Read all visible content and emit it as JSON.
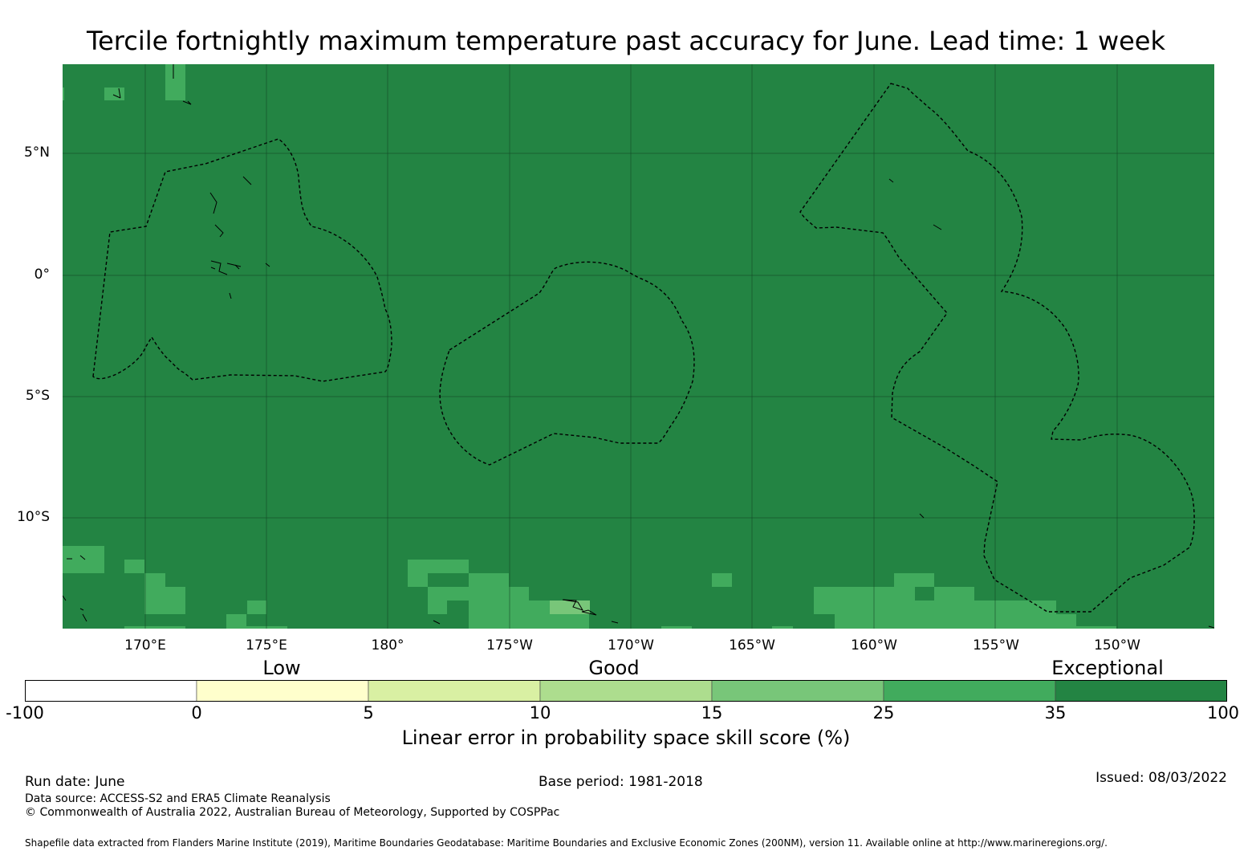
{
  "title": "Tercile fortnightly maximum temperature past accuracy for June. Lead time: 1 week",
  "lat_labels": [
    "5°N",
    "0°",
    "5°S",
    "10°S"
  ],
  "lon_labels": [
    "170°E",
    "175°E",
    "180°",
    "175°W",
    "170°W",
    "165°W",
    "160°W",
    "155°W",
    "150°W"
  ],
  "categories": [
    "Low",
    "Good",
    "Exceptional"
  ],
  "colorbar": {
    "ticks": [
      "-100",
      "0",
      "5",
      "10",
      "15",
      "25",
      "35",
      "100"
    ],
    "colors": [
      "#ffffff",
      "#ffffcc",
      "#d9f0a3",
      "#addd8e",
      "#78c679",
      "#41ab5d",
      "#238443"
    ],
    "label": "Linear error in probability space skill score (%)"
  },
  "map": {
    "background_color": "#238443",
    "ocean_color": "#238443",
    "lighter_color": "#41ab5d",
    "lightest_color": "#78c679"
  },
  "footer": {
    "run_date": "Run date: June",
    "base_period": "Base period: 1981-2018",
    "issued": "Issued: 08/03/2022",
    "data_source": "Data source: ACCESS-S2 and ERA5 Climate Reanalysis",
    "copyright": "© Commonwealth of Australia 2022, Australian Bureau of Meteorology, Supported by COSPPac",
    "shapefile": "Shapefile data extracted from Flanders Marine Institute (2019), Maritime Boundaries Geodatabase: Maritime Boundaries and Exclusive Economic Zones (200NM), version 11. Available online at http://www.marineregions.org/."
  }
}
